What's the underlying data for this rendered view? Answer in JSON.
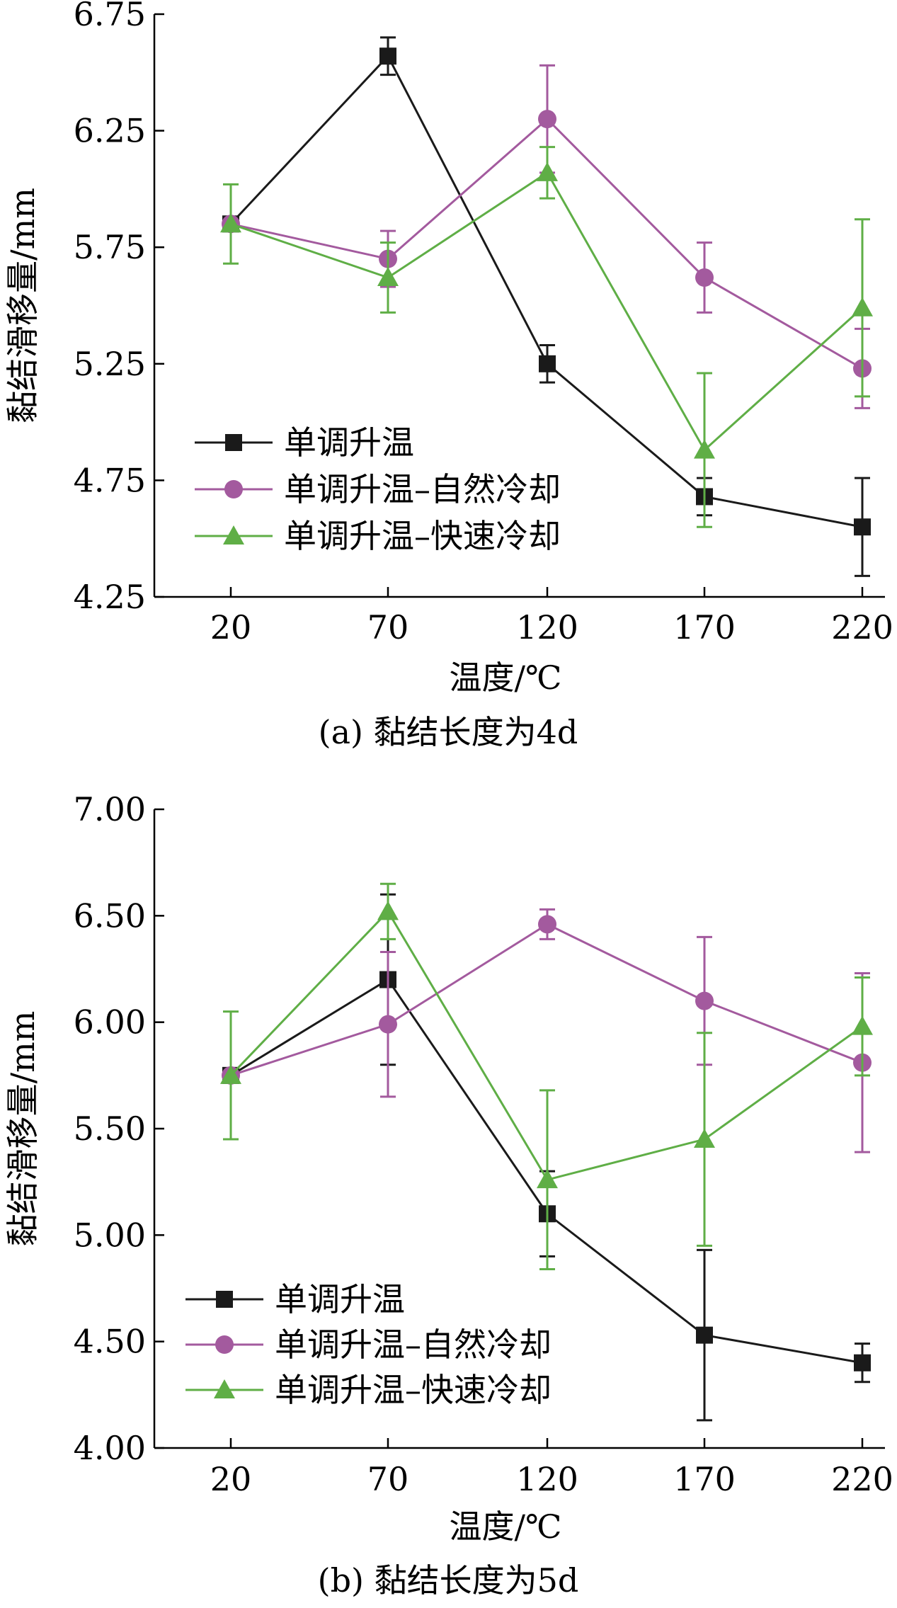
{
  "chart_data": [
    {
      "type": "line",
      "caption": "(a) 黏结长度为4d",
      "xlabel": "温度/℃",
      "ylabel": "黏结滑移量/mm",
      "x": [
        20,
        70,
        120,
        170,
        220
      ],
      "xticks": [
        "20",
        "70",
        "120",
        "170",
        "220"
      ],
      "ylim": [
        4.25,
        6.75
      ],
      "yticks": [
        "4.25",
        "4.75",
        "5.25",
        "5.75",
        "6.25",
        "6.75"
      ],
      "grid": false,
      "legend_position": "bottom-left",
      "series": [
        {
          "name": "单调升温",
          "color": "#1a1a1a",
          "marker": "square",
          "values": [
            5.85,
            6.57,
            5.25,
            4.68,
            4.55
          ],
          "errors": [
            null,
            0.08,
            0.08,
            0.08,
            0.21
          ]
        },
        {
          "name": "单调升温–自然冷却",
          "color": "#a35a9e",
          "marker": "circle",
          "values": [
            5.85,
            5.7,
            6.3,
            5.62,
            5.23
          ],
          "errors": [
            null,
            0.12,
            0.23,
            0.15,
            0.17
          ]
        },
        {
          "name": "单调升温–快速冷却",
          "color": "#5fae46",
          "marker": "triangle",
          "values": [
            5.85,
            5.62,
            6.07,
            4.88,
            5.49
          ],
          "errors": [
            0.17,
            0.15,
            0.11,
            0.33,
            0.38
          ]
        }
      ]
    },
    {
      "type": "line",
      "caption": "(b) 黏结长度为5d",
      "xlabel": "温度/℃",
      "ylabel": "黏结滑移量/mm",
      "x": [
        20,
        70,
        120,
        170,
        220
      ],
      "xticks": [
        "20",
        "70",
        "120",
        "170",
        "220"
      ],
      "ylim": [
        4.0,
        7.0
      ],
      "yticks": [
        "4.00",
        "4.50",
        "5.00",
        "5.50",
        "6.00",
        "6.50",
        "7.00"
      ],
      "grid": false,
      "legend_position": "bottom-left",
      "series": [
        {
          "name": "单调升温",
          "color": "#1a1a1a",
          "marker": "square",
          "values": [
            5.75,
            6.2,
            5.1,
            4.53,
            4.4
          ],
          "errors": [
            null,
            0.4,
            0.2,
            0.4,
            0.09
          ]
        },
        {
          "name": "单调升温–自然冷却",
          "color": "#a35a9e",
          "marker": "circle",
          "values": [
            5.75,
            5.99,
            6.46,
            6.1,
            5.81
          ],
          "errors": [
            null,
            0.34,
            0.07,
            0.3,
            0.42
          ]
        },
        {
          "name": "单调升温–快速冷却",
          "color": "#5fae46",
          "marker": "triangle",
          "values": [
            5.75,
            6.52,
            5.26,
            5.45,
            5.98
          ],
          "errors": [
            0.3,
            0.13,
            0.42,
            0.5,
            0.23
          ]
        }
      ]
    }
  ]
}
